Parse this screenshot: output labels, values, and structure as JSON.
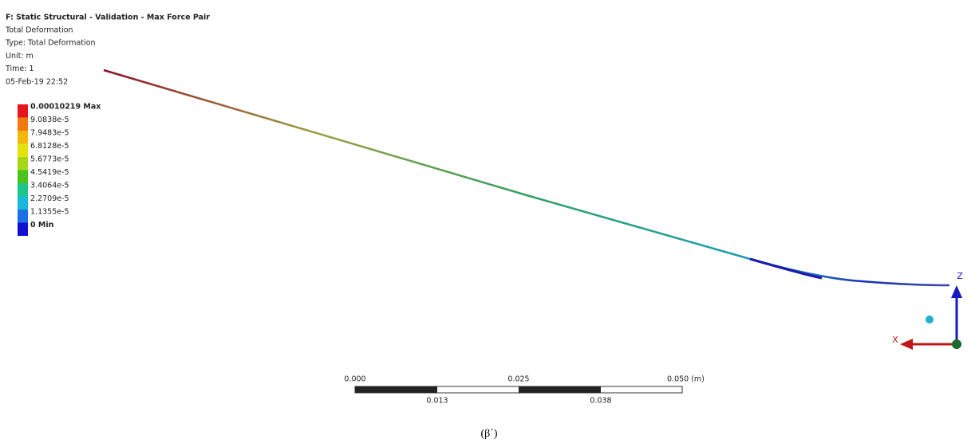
{
  "header": {
    "title": "F: Static Structural - Validation - Max Force Pair",
    "lines": [
      "Total Deformation",
      "Type: Total Deformation",
      "Unit: m",
      "Time: 1",
      "05-Feb-19 22:52"
    ]
  },
  "legend": {
    "entries": [
      {
        "label": "0.00010219 Max",
        "color": "#e8141c"
      },
      {
        "label": "9.0838e-5",
        "color": "#f07a10"
      },
      {
        "label": "7.9483e-5",
        "color": "#f2b90c"
      },
      {
        "label": "6.8128e-5",
        "color": "#e4e40c"
      },
      {
        "label": "5.6773e-5",
        "color": "#a6d818"
      },
      {
        "label": "4.5419e-5",
        "color": "#4cc21c"
      },
      {
        "label": "3.4064e-5",
        "color": "#1cc688"
      },
      {
        "label": "2.2709e-5",
        "color": "#18b8d8"
      },
      {
        "label": "1.1355e-5",
        "color": "#1c70e8"
      },
      {
        "label": "0 Min",
        "color": "#1010d0"
      }
    ]
  },
  "scale_bar": {
    "top_labels": [
      "0.000",
      "0.025",
      "0.050 (m)"
    ],
    "bottom_labels": [
      "0.013",
      "0.038"
    ]
  },
  "triad": {
    "z_label": "Z",
    "x_label": "X"
  },
  "caption": "(β΄)"
}
